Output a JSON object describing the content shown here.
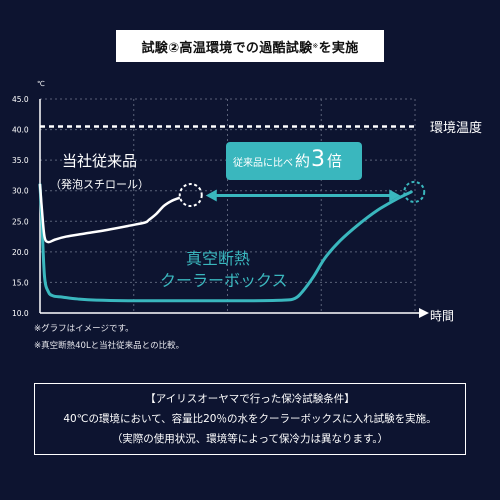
{
  "title": {
    "text": "試験②高温環境での過酷試験",
    "mark": "※",
    "tail": "を実施"
  },
  "notes": [
    "※グラフはイメージです。",
    "※真空断熱40Lと当社従来品との比較。"
  ],
  "conditions": {
    "heading": "【アイリスオーヤマで行った保冷試験条件】",
    "line1": "40℃の環境において、容量比20％の水をクーラーボックスに入れ試験を実施。",
    "line2": "（実際の使用状況、環境等によって保冷力は異なります。）"
  },
  "colors": {
    "background": "#0d1430",
    "grid": "#5a6178",
    "ambient": "#ffffff",
    "conventional": "#ffffff",
    "vacuum": "#3ab7be",
    "badge": "#3ab7be",
    "arrow": "#3ab7be"
  },
  "chart_data": {
    "type": "line",
    "yunit": "℃",
    "xlabel": "時間",
    "ylim": [
      10,
      45
    ],
    "yticks": [
      "45.0",
      "40.0",
      "35.0",
      "30.0",
      "25.0",
      "20.0",
      "15.0",
      "10.0"
    ],
    "ytick_values": [
      45,
      40,
      35,
      30,
      25,
      20,
      15,
      10
    ],
    "xlim": [
      0,
      10
    ],
    "grid": true,
    "ambient": {
      "name": "環境温度",
      "value": 40.5
    },
    "series": [
      {
        "name_line1": "当社従来品",
        "name_line2": "（発泡スチロール）",
        "x": [
          0,
          0.05,
          0.12,
          0.22,
          0.4,
          0.7,
          1.2,
          1.8,
          2.4,
          2.8,
          2.9,
          3.1,
          3.3,
          3.5,
          3.7
        ],
        "y": [
          31,
          27,
          22.5,
          21.6,
          22,
          22.5,
          23,
          23.6,
          24.3,
          24.8,
          25.2,
          26.2,
          27.5,
          28.3,
          28.8
        ]
      },
      {
        "name_line1": "真空断熱",
        "name_line2": "クーラーボックス",
        "x": [
          0,
          0.05,
          0.12,
          0.22,
          0.35,
          0.6,
          1.0,
          1.5,
          2.5,
          4.0,
          5.5,
          6.5,
          6.8,
          7.0,
          7.3,
          7.6,
          8.0,
          8.5,
          9.0,
          9.5,
          9.9
        ],
        "y": [
          31,
          25,
          16,
          13.5,
          12.8,
          12.6,
          12.3,
          12.1,
          12.0,
          12.0,
          12.0,
          12.1,
          12.4,
          13.5,
          16,
          19,
          21.8,
          24.5,
          26.8,
          28.6,
          29.8
        ]
      }
    ],
    "annotation": {
      "label": "従来品に比べ",
      "prefix": "約",
      "number": "3",
      "suffix": "倍"
    },
    "markers": [
      {
        "x": 3.7,
        "y": 28.8
      },
      {
        "x": 9.9,
        "y": 29.8
      }
    ]
  }
}
